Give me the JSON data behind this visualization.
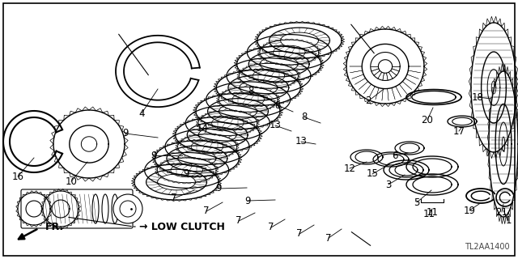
{
  "background_color": "#ffffff",
  "diagram_code": "TL2AA1400",
  "label": "LOW CLUTCH",
  "fr_label": "FR.",
  "figsize": [
    6.4,
    3.2
  ],
  "dpi": 100
}
